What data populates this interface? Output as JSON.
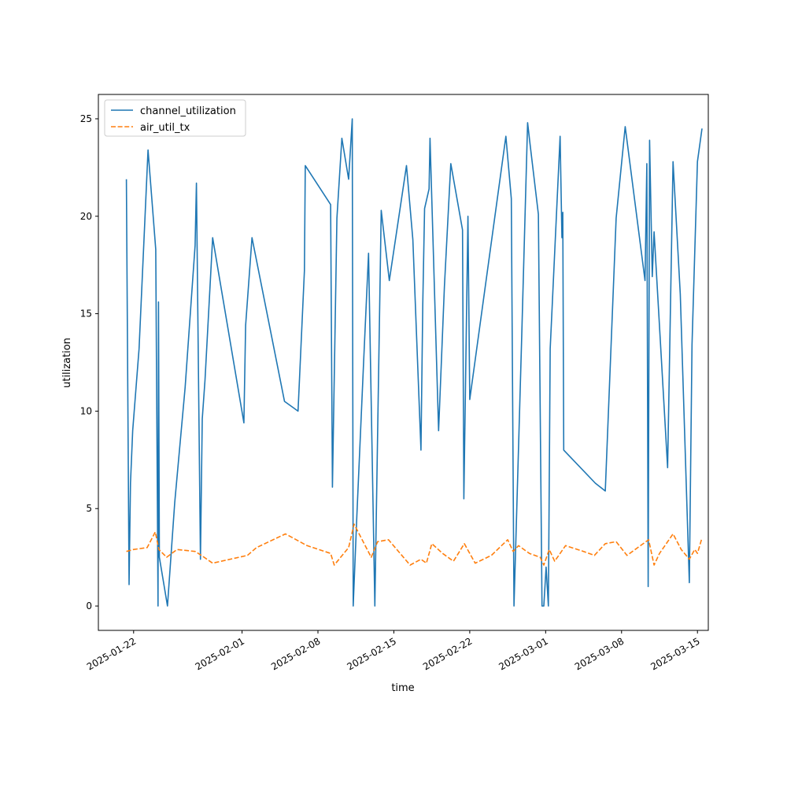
{
  "chart_data": {
    "type": "line",
    "xlabel": "time",
    "ylabel": "utilization",
    "xlim": [
      "2025-01-18T18:00",
      "2025-03-16T00:00"
    ],
    "ylim": [
      -1.25,
      26.25
    ],
    "x_ticks": [
      "2025-01-22",
      "2025-02-01",
      "2025-02-08",
      "2025-02-15",
      "2025-02-22",
      "2025-03-01",
      "2025-03-08",
      "2025-03-15"
    ],
    "y_ticks": [
      0,
      5,
      10,
      15,
      20,
      25
    ],
    "grid": false,
    "legend_position": "upper-left",
    "colors": {
      "channel_utilization": "#1f77b4",
      "air_util_tx": "#ff7f0e"
    },
    "series": [
      {
        "name": "channel_utilization",
        "style": "solid",
        "points": [
          [
            "2025-01-21T08:00",
            21.9
          ],
          [
            "2025-01-21T14:00",
            1.1
          ],
          [
            "2025-01-21T17:00",
            6.3
          ],
          [
            "2025-01-21T22:00",
            9.0
          ],
          [
            "2025-01-22T12:00",
            13.2
          ],
          [
            "2025-01-23T08:00",
            23.4
          ],
          [
            "2025-01-24T01:00",
            18.3
          ],
          [
            "2025-01-24T06:00",
            0.0
          ],
          [
            "2025-01-24T07:00",
            15.6
          ],
          [
            "2025-01-24T09:00",
            2.5
          ],
          [
            "2025-01-25T03:00",
            0.0
          ],
          [
            "2025-01-25T19:00",
            5.3
          ],
          [
            "2025-01-26T18:00",
            11.2
          ],
          [
            "2025-01-27T16:00",
            18.5
          ],
          [
            "2025-01-27T19:00",
            21.7
          ],
          [
            "2025-01-28T04:00",
            2.4
          ],
          [
            "2025-01-28T08:00",
            9.6
          ],
          [
            "2025-01-28T14:00",
            11.6
          ],
          [
            "2025-01-29T07:00",
            18.9
          ],
          [
            "2025-02-01T04:00",
            9.4
          ],
          [
            "2025-02-01T08:00",
            14.4
          ],
          [
            "2025-02-01T22:00",
            18.9
          ],
          [
            "2025-02-04T22:00",
            10.5
          ],
          [
            "2025-02-06T04:00",
            10.0
          ],
          [
            "2025-02-06T18:00",
            17.2
          ],
          [
            "2025-02-06T20:00",
            22.6
          ],
          [
            "2025-02-09T04:00",
            20.6
          ],
          [
            "2025-02-09T08:00",
            6.1
          ],
          [
            "2025-02-09T18:00",
            19.9
          ],
          [
            "2025-02-10T05:00",
            24.0
          ],
          [
            "2025-02-10T20:00",
            21.9
          ],
          [
            "2025-02-11T04:00",
            25.0
          ],
          [
            "2025-02-11T06:00",
            0.0
          ],
          [
            "2025-02-11T14:00",
            4.6
          ],
          [
            "2025-02-12T05:00",
            12.5
          ],
          [
            "2025-02-12T16:00",
            18.1
          ],
          [
            "2025-02-13T06:00",
            0.0
          ],
          [
            "2025-02-13T20:00",
            20.3
          ],
          [
            "2025-02-14T14:00",
            16.7
          ],
          [
            "2025-02-16T04:00",
            22.6
          ],
          [
            "2025-02-16T18:00",
            18.8
          ],
          [
            "2025-02-17T12:00",
            8.0
          ],
          [
            "2025-02-17T16:00",
            15.5
          ],
          [
            "2025-02-17T20:00",
            20.4
          ],
          [
            "2025-02-18T06:00",
            21.4
          ],
          [
            "2025-02-18T08:00",
            24.0
          ],
          [
            "2025-02-19T03:00",
            9.0
          ],
          [
            "2025-02-19T16:00",
            16.4
          ],
          [
            "2025-02-20T06:00",
            22.7
          ],
          [
            "2025-02-21T08:00",
            19.3
          ],
          [
            "2025-02-21T11:00",
            5.5
          ],
          [
            "2025-02-21T20:00",
            20.0
          ],
          [
            "2025-02-22T00:00",
            10.6
          ],
          [
            "2025-02-25T08:00",
            24.1
          ],
          [
            "2025-02-25T20:00",
            20.9
          ],
          [
            "2025-02-26T02:00",
            0.0
          ],
          [
            "2025-02-26T19:00",
            13.8
          ],
          [
            "2025-02-27T08:00",
            24.8
          ],
          [
            "2025-02-27T14:00",
            23.6
          ],
          [
            "2025-02-28T08:00",
            20.1
          ],
          [
            "2025-02-28T16:00",
            0.0
          ],
          [
            "2025-02-28T20:00",
            0.0
          ],
          [
            "2025-03-01T01:00",
            2.0
          ],
          [
            "2025-03-01T06:00",
            0.0
          ],
          [
            "2025-03-01T10:00",
            13.2
          ],
          [
            "2025-03-02T08:00",
            24.1
          ],
          [
            "2025-03-02T12:00",
            18.9
          ],
          [
            "2025-03-02T14:00",
            20.2
          ],
          [
            "2025-03-02T16:00",
            8.0
          ],
          [
            "2025-03-05T14:00",
            6.3
          ],
          [
            "2025-03-06T12:00",
            5.9
          ],
          [
            "2025-03-07T12:00",
            19.9
          ],
          [
            "2025-03-08T08:00",
            24.6
          ],
          [
            "2025-03-10T04:00",
            16.7
          ],
          [
            "2025-03-10T08:00",
            22.7
          ],
          [
            "2025-03-10T11:00",
            1.0
          ],
          [
            "2025-03-10T14:00",
            23.9
          ],
          [
            "2025-03-10T20:00",
            16.9
          ],
          [
            "2025-03-11T00:00",
            19.2
          ],
          [
            "2025-03-12T06:00",
            7.1
          ],
          [
            "2025-03-12T18:00",
            22.8
          ],
          [
            "2025-03-13T10:00",
            16.0
          ],
          [
            "2025-03-14T06:00",
            1.2
          ],
          [
            "2025-03-14T12:00",
            13.4
          ],
          [
            "2025-03-15T00:00",
            22.8
          ],
          [
            "2025-03-15T10:00",
            24.5
          ]
        ]
      },
      {
        "name": "air_util_tx",
        "style": "dashed",
        "points": [
          [
            "2025-01-21T08:00",
            2.8
          ],
          [
            "2025-01-22T00:00",
            2.9
          ],
          [
            "2025-01-23T06:00",
            3.0
          ],
          [
            "2025-01-24T00:00",
            3.8
          ],
          [
            "2025-01-24T08:00",
            2.9
          ],
          [
            "2025-01-25T01:00",
            2.5
          ],
          [
            "2025-01-26T00:00",
            2.9
          ],
          [
            "2025-01-27T16:00",
            2.8
          ],
          [
            "2025-01-28T06:00",
            2.6
          ],
          [
            "2025-01-29T07:00",
            2.2
          ],
          [
            "2025-02-01T12:00",
            2.6
          ],
          [
            "2025-02-02T08:00",
            3.0
          ],
          [
            "2025-02-05T00:00",
            3.7
          ],
          [
            "2025-02-07T00:00",
            3.1
          ],
          [
            "2025-02-09T04:00",
            2.7
          ],
          [
            "2025-02-09T12:00",
            2.1
          ],
          [
            "2025-02-10T20:00",
            3.0
          ],
          [
            "2025-02-11T08:00",
            4.2
          ],
          [
            "2025-02-12T22:00",
            2.5
          ],
          [
            "2025-02-13T12:00",
            3.3
          ],
          [
            "2025-02-14T12:00",
            3.4
          ],
          [
            "2025-02-16T12:00",
            2.1
          ],
          [
            "2025-02-17T12:00",
            2.4
          ],
          [
            "2025-02-18T00:00",
            2.2
          ],
          [
            "2025-02-18T12:00",
            3.2
          ],
          [
            "2025-02-19T12:00",
            2.7
          ],
          [
            "2025-02-20T12:00",
            2.3
          ],
          [
            "2025-02-21T12:00",
            3.2
          ],
          [
            "2025-02-22T12:00",
            2.2
          ],
          [
            "2025-02-24T00:00",
            2.6
          ],
          [
            "2025-02-25T12:00",
            3.4
          ],
          [
            "2025-02-26T00:00",
            2.8
          ],
          [
            "2025-02-26T12:00",
            3.1
          ],
          [
            "2025-02-27T12:00",
            2.7
          ],
          [
            "2025-02-28T12:00",
            2.5
          ],
          [
            "2025-02-28T20:00",
            2.1
          ],
          [
            "2025-03-01T08:00",
            2.9
          ],
          [
            "2025-03-01T20:00",
            2.3
          ],
          [
            "2025-03-02T20:00",
            3.1
          ],
          [
            "2025-03-04T12:00",
            2.8
          ],
          [
            "2025-03-05T12:00",
            2.6
          ],
          [
            "2025-03-06T12:00",
            3.2
          ],
          [
            "2025-03-07T12:00",
            3.3
          ],
          [
            "2025-03-08T12:00",
            2.6
          ],
          [
            "2025-03-10T12:00",
            3.4
          ],
          [
            "2025-03-11T00:00",
            2.1
          ],
          [
            "2025-03-11T12:00",
            2.7
          ],
          [
            "2025-03-12T18:00",
            3.7
          ],
          [
            "2025-03-13T12:00",
            2.9
          ],
          [
            "2025-03-14T06:00",
            2.4
          ],
          [
            "2025-03-14T18:00",
            2.9
          ],
          [
            "2025-03-15T00:00",
            2.7
          ],
          [
            "2025-03-15T10:00",
            3.5
          ]
        ]
      }
    ]
  }
}
